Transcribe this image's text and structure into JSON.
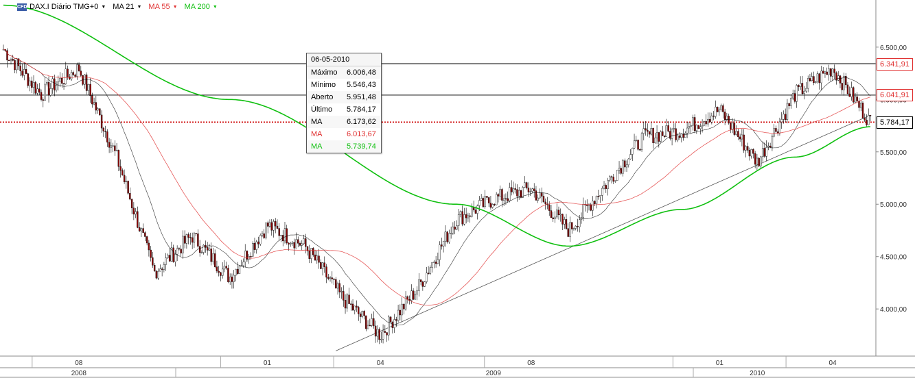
{
  "legend": {
    "symbol": "DAX.I Diário TMG+0",
    "ma21": "MA 21",
    "ma55": "MA 55",
    "ma200": "MA 200",
    "colors": {
      "ma21": "#000000",
      "ma55": "#e03030",
      "ma200": "#10c010"
    }
  },
  "tooltip": {
    "date": "06-05-2010",
    "rows": [
      {
        "label": "Máximo",
        "value": "6.006,48",
        "color": "#000000"
      },
      {
        "label": "Mínimo",
        "value": "5.546,43",
        "color": "#000000"
      },
      {
        "label": "Aberto",
        "value": "5.951,48",
        "color": "#000000"
      },
      {
        "label": "Último",
        "value": "5.784,17",
        "color": "#000000"
      },
      {
        "label": "MA",
        "value": "6.173,62",
        "color": "#000000"
      },
      {
        "label": "MA",
        "value": "6.013,67",
        "color": "#e03030"
      },
      {
        "label": "MA",
        "value": "5.739,74",
        "color": "#10c010"
      }
    ]
  },
  "badges": {
    "resistance1": "6.341,91",
    "resistance2": "6.041,91",
    "last": "5.784,17"
  },
  "chart_data": {
    "type": "candlestick",
    "title": "DAX.I Diário TMG+0",
    "ylim": [
      3550,
      6950
    ],
    "y_ticks": [
      "6.500,00",
      "6.000,00",
      "5.500,00",
      "5.000,00",
      "4.500,00",
      "4.000,00"
    ],
    "y_tick_values": [
      6500,
      6000,
      5500,
      5000,
      4500,
      4000
    ],
    "x_month_labels": [
      "08",
      "01",
      "04",
      "08",
      "01",
      "04"
    ],
    "x_year_labels": [
      "2008",
      "2009",
      "2010"
    ],
    "horizontal_lines": [
      {
        "value": 6341.91,
        "style": "solid",
        "color": "#000000"
      },
      {
        "value": 6041.91,
        "style": "solid",
        "color": "#000000"
      },
      {
        "value": 5784.17,
        "style": "dotted",
        "color": "#cc0000"
      }
    ],
    "close_anchors": [
      {
        "x": "2008-06",
        "y": 6480
      },
      {
        "x": "2008-07",
        "y": 6050
      },
      {
        "x": "2008-08",
        "y": 6300
      },
      {
        "x": "2008-09",
        "y": 5450
      },
      {
        "x": "2008-10",
        "y": 4350
      },
      {
        "x": "2008-11",
        "y": 4700
      },
      {
        "x": "2008-12",
        "y": 4300
      },
      {
        "x": "2009-01",
        "y": 4800
      },
      {
        "x": "2009-02",
        "y": 4600
      },
      {
        "x": "2009-03",
        "y": 4100
      },
      {
        "x": "2009-04",
        "y": 3750
      },
      {
        "x": "2009-05",
        "y": 4200
      },
      {
        "x": "2009-06",
        "y": 4850
      },
      {
        "x": "2009-07",
        "y": 5050
      },
      {
        "x": "2009-08",
        "y": 5150
      },
      {
        "x": "2009-09",
        "y": 4750
      },
      {
        "x": "2009-10",
        "y": 5200
      },
      {
        "x": "2009-11",
        "y": 5650
      },
      {
        "x": "2009-12",
        "y": 5700
      },
      {
        "x": "2010-01",
        "y": 5900
      },
      {
        "x": "2010-02",
        "y": 5400
      },
      {
        "x": "2010-03",
        "y": 6050
      },
      {
        "x": "2010-04",
        "y": 6300
      },
      {
        "x": "2010-05",
        "y": 5784
      }
    ],
    "ma200_anchors": [
      {
        "x": "2008-06",
        "y": 6900
      },
      {
        "x": "2008-12",
        "y": 6000
      },
      {
        "x": "2009-06",
        "y": 5000
      },
      {
        "x": "2009-09",
        "y": 4600
      },
      {
        "x": "2009-12",
        "y": 4950
      },
      {
        "x": "2010-03",
        "y": 5450
      },
      {
        "x": "2010-05",
        "y": 5740
      }
    ],
    "trendline": [
      {
        "x": "2009-03",
        "y": 3600
      },
      {
        "x": "2010-05",
        "y": 5850
      }
    ]
  }
}
